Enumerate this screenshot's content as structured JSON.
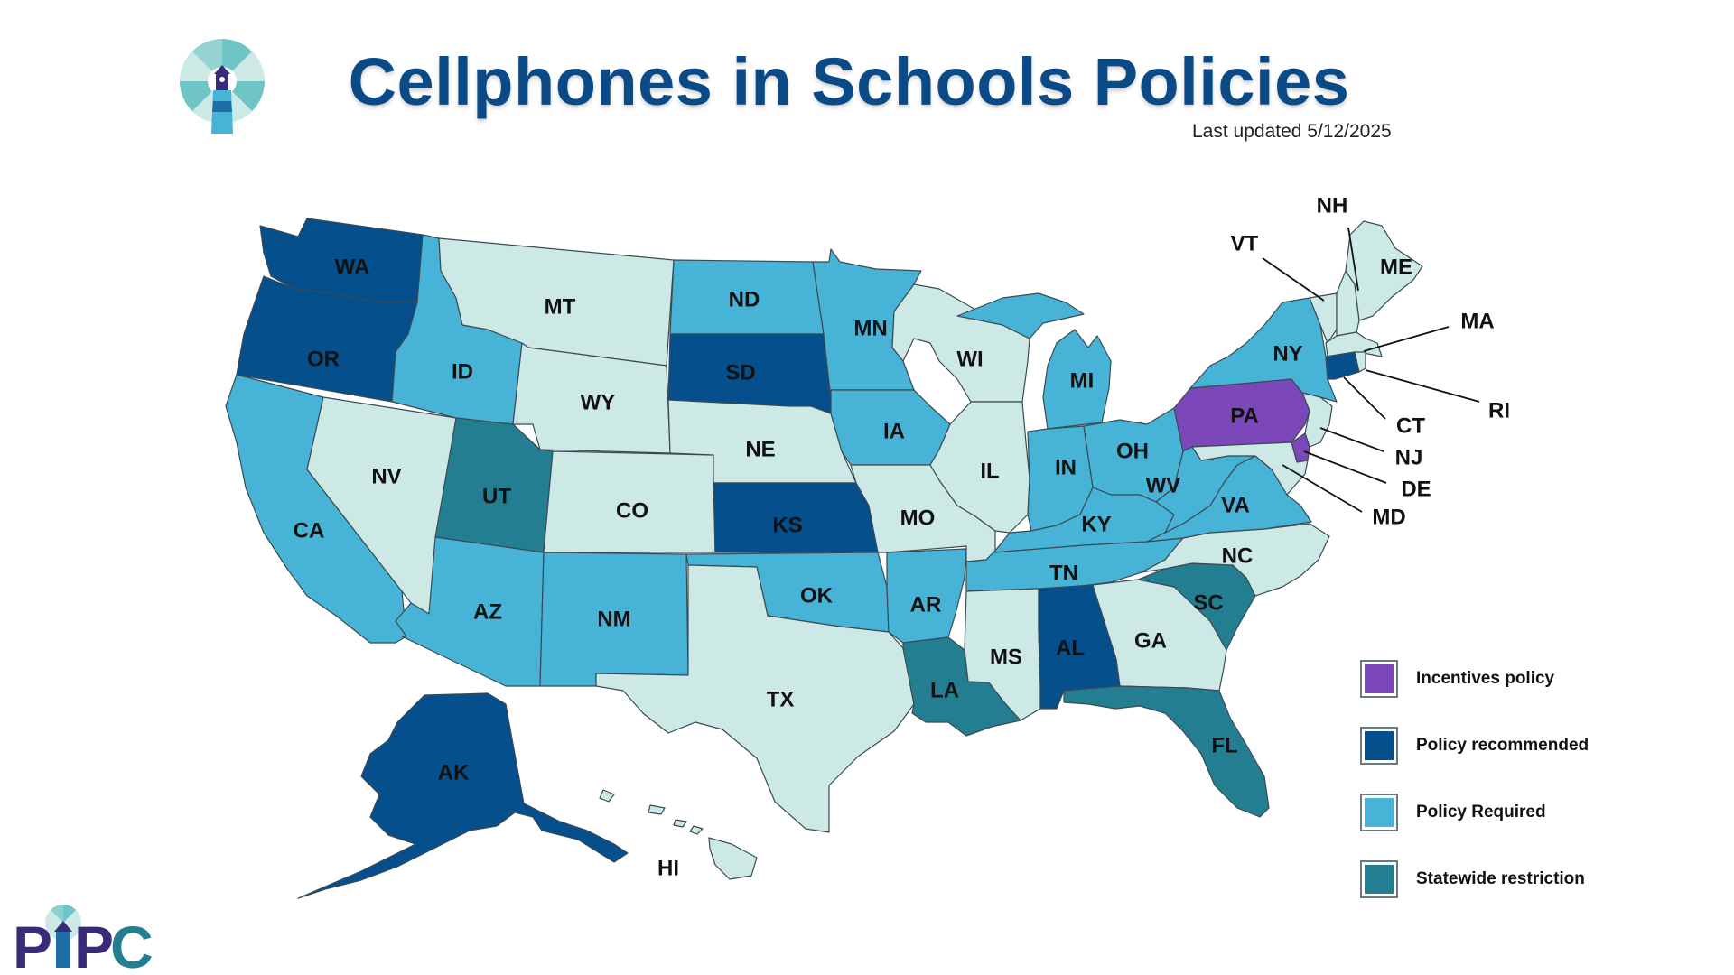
{
  "title": "Cellphones in Schools Policies",
  "last_updated": "Last updated 5/12/2025",
  "logo_text": "PIPC",
  "colors": {
    "incentives": "#7c47b8",
    "recommended": "#054f8c",
    "required": "#47b3d6",
    "statewide": "#237e91",
    "none": "#cde9e6"
  },
  "legend": [
    {
      "key": "incentives",
      "label": "Incentives policy"
    },
    {
      "key": "recommended",
      "label": "Policy recommended"
    },
    {
      "key": "required",
      "label": "Policy Required"
    },
    {
      "key": "statewide",
      "label": "Statewide restriction"
    }
  ],
  "states": [
    {
      "abbr": "WA",
      "category": "recommended"
    },
    {
      "abbr": "OR",
      "category": "recommended"
    },
    {
      "abbr": "CA",
      "category": "required"
    },
    {
      "abbr": "NV",
      "category": "none"
    },
    {
      "abbr": "ID",
      "category": "required"
    },
    {
      "abbr": "MT",
      "category": "none"
    },
    {
      "abbr": "WY",
      "category": "none"
    },
    {
      "abbr": "UT",
      "category": "statewide"
    },
    {
      "abbr": "AZ",
      "category": "required"
    },
    {
      "abbr": "CO",
      "category": "none"
    },
    {
      "abbr": "NM",
      "category": "required"
    },
    {
      "abbr": "ND",
      "category": "required"
    },
    {
      "abbr": "SD",
      "category": "recommended"
    },
    {
      "abbr": "NE",
      "category": "none"
    },
    {
      "abbr": "KS",
      "category": "recommended"
    },
    {
      "abbr": "OK",
      "category": "required"
    },
    {
      "abbr": "TX",
      "category": "none"
    },
    {
      "abbr": "MN",
      "category": "required"
    },
    {
      "abbr": "IA",
      "category": "required"
    },
    {
      "abbr": "MO",
      "category": "none"
    },
    {
      "abbr": "AR",
      "category": "required"
    },
    {
      "abbr": "LA",
      "category": "statewide"
    },
    {
      "abbr": "WI",
      "category": "none"
    },
    {
      "abbr": "IL",
      "category": "none"
    },
    {
      "abbr": "MI",
      "category": "required"
    },
    {
      "abbr": "IN",
      "category": "required"
    },
    {
      "abbr": "OH",
      "category": "required"
    },
    {
      "abbr": "KY",
      "category": "required"
    },
    {
      "abbr": "TN",
      "category": "required"
    },
    {
      "abbr": "MS",
      "category": "none"
    },
    {
      "abbr": "AL",
      "category": "recommended"
    },
    {
      "abbr": "GA",
      "category": "none"
    },
    {
      "abbr": "FL",
      "category": "statewide"
    },
    {
      "abbr": "SC",
      "category": "statewide"
    },
    {
      "abbr": "NC",
      "category": "none"
    },
    {
      "abbr": "VA",
      "category": "required"
    },
    {
      "abbr": "WV",
      "category": "required"
    },
    {
      "abbr": "PA",
      "category": "incentives"
    },
    {
      "abbr": "NY",
      "category": "required"
    },
    {
      "abbr": "VT",
      "category": "none"
    },
    {
      "abbr": "NH",
      "category": "none"
    },
    {
      "abbr": "ME",
      "category": "none"
    },
    {
      "abbr": "MA",
      "category": "none"
    },
    {
      "abbr": "RI",
      "category": "none"
    },
    {
      "abbr": "CT",
      "category": "recommended"
    },
    {
      "abbr": "NJ",
      "category": "none"
    },
    {
      "abbr": "DE",
      "category": "incentives"
    },
    {
      "abbr": "MD",
      "category": "none"
    },
    {
      "abbr": "AK",
      "category": "recommended"
    },
    {
      "abbr": "HI",
      "category": "none"
    }
  ]
}
